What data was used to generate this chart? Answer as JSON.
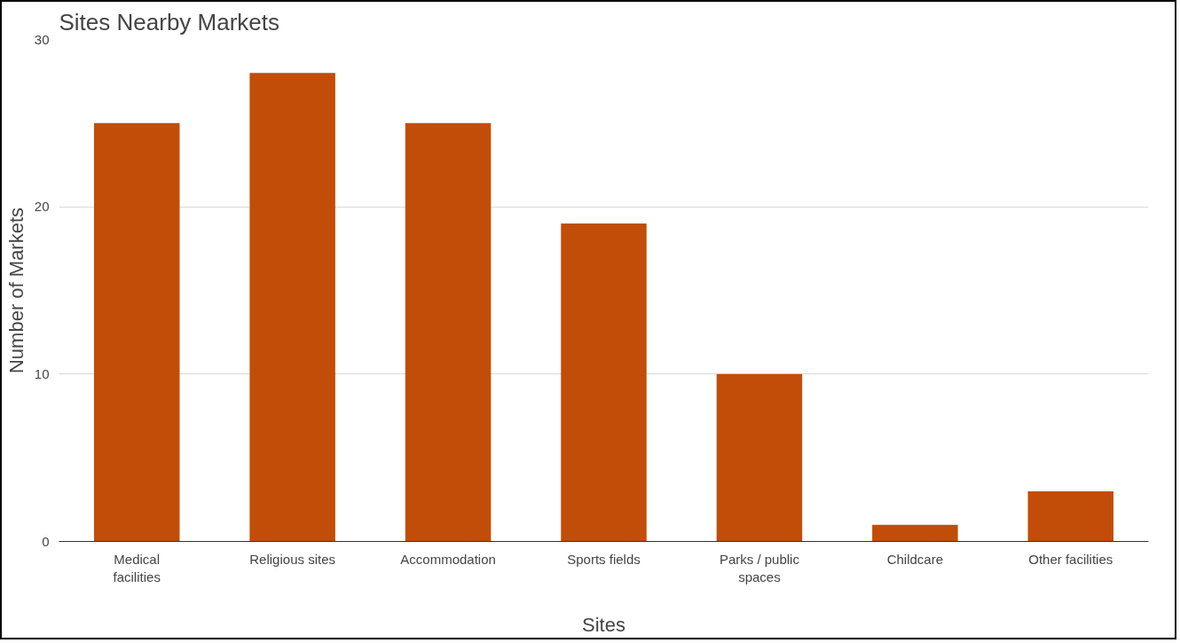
{
  "chart_data": {
    "type": "bar",
    "title": "Sites Nearby Markets",
    "xlabel": "Sites",
    "ylabel": "Number of Markets",
    "categories": [
      "Medical\nfacilities",
      "Religious sites",
      "Accommodation",
      "Sports fields",
      "Parks / public\nspaces",
      "Childcare",
      "Other facilities"
    ],
    "values": [
      25,
      28,
      25,
      19,
      10,
      1,
      3
    ],
    "color": "#c14d08",
    "ylim": [
      0,
      30
    ],
    "yticks": [
      0,
      10,
      20,
      30
    ],
    "grid": "y"
  }
}
